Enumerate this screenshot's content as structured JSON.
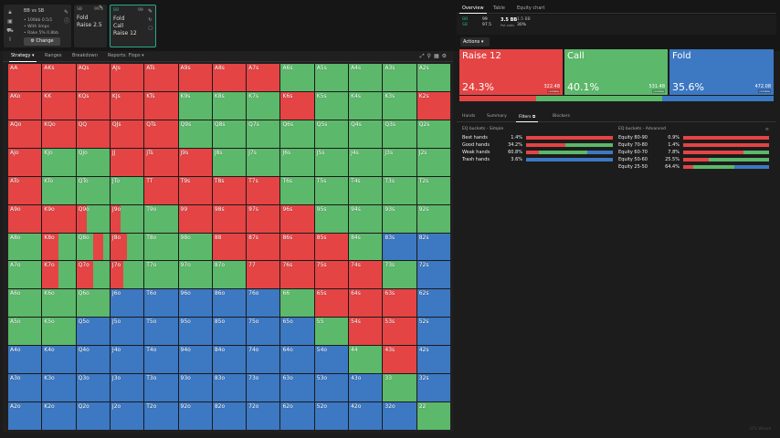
{
  "colors": {
    "raise": "#e44444",
    "call": "#5cb86a",
    "fold": "#3d78c2"
  },
  "gameinfo": {
    "title": "BB vs SB",
    "lines": [
      "• 100bb 0.5/1",
      "• With limps",
      "• Rake 5% 0.8bb"
    ],
    "change_label": "Change",
    "icons": [
      "lock-icon",
      "save-icon",
      "car-icon",
      "text-cursor-icon"
    ]
  },
  "cards": [
    {
      "pos": "SB",
      "stack": "99.5",
      "lines": [
        "Fold",
        "Raise 2.5"
      ],
      "selected": 1,
      "active": false
    },
    {
      "pos": "BB",
      "stack": "99",
      "lines": [
        "Fold",
        "Call",
        "Raise 12"
      ],
      "selected": -1,
      "active": true
    }
  ],
  "left_tabs": [
    {
      "label": "Strategy",
      "active": true,
      "chev": true
    },
    {
      "label": "Ranges",
      "active": false,
      "chev": false
    },
    {
      "label": "Breakdown",
      "active": false,
      "chev": false
    },
    {
      "label": "Reports: Flops",
      "active": false,
      "chev": true
    }
  ],
  "grid": [
    [
      [
        "AA",
        "r"
      ],
      [
        "AKs",
        "r"
      ],
      [
        "AQs",
        "r"
      ],
      [
        "AJs",
        "r"
      ],
      [
        "ATs",
        "r"
      ],
      [
        "A9s",
        "r"
      ],
      [
        "A8s",
        "r"
      ],
      [
        "A7s",
        "r"
      ],
      [
        "A6s",
        "c"
      ],
      [
        "A5s",
        "c"
      ],
      [
        "A4s",
        "c"
      ],
      [
        "A3s",
        "c"
      ],
      [
        "A2s",
        "c"
      ]
    ],
    [
      [
        "AKo",
        "r"
      ],
      [
        "KK",
        "r"
      ],
      [
        "KQs",
        "r"
      ],
      [
        "KJs",
        "r"
      ],
      [
        "KTs",
        "r"
      ],
      [
        "K9s",
        "c"
      ],
      [
        "K8s",
        "c"
      ],
      [
        "K7s",
        "c"
      ],
      [
        "K6s",
        "r"
      ],
      [
        "K5s",
        "c"
      ],
      [
        "K4s",
        "c"
      ],
      [
        "K3s",
        "c"
      ],
      [
        "K2s",
        "r"
      ]
    ],
    [
      [
        "AQo",
        "r"
      ],
      [
        "KQo",
        "r"
      ],
      [
        "QQ",
        "r"
      ],
      [
        "QJs",
        "r"
      ],
      [
        "QTs",
        "r"
      ],
      [
        "Q9s",
        "c"
      ],
      [
        "Q8s",
        "c"
      ],
      [
        "Q7s",
        "c"
      ],
      [
        "Q6s",
        "c"
      ],
      [
        "Q5s",
        "c"
      ],
      [
        "Q4s",
        "c"
      ],
      [
        "Q3s",
        "c"
      ],
      [
        "Q2s",
        "c"
      ]
    ],
    [
      [
        "AJo",
        "r"
      ],
      [
        "KJo",
        "c"
      ],
      [
        "QJo",
        "c"
      ],
      [
        "JJ",
        "r"
      ],
      [
        "JTs",
        "r"
      ],
      [
        "J9s",
        "r"
      ],
      [
        "J8s",
        "c"
      ],
      [
        "J7s",
        "c"
      ],
      [
        "J6s",
        "c"
      ],
      [
        "J5s",
        "c"
      ],
      [
        "J4s",
        "c"
      ],
      [
        "J3s",
        "c"
      ],
      [
        "J2s",
        "c"
      ]
    ],
    [
      [
        "ATo",
        "r"
      ],
      [
        "KTo",
        "c"
      ],
      [
        "QTo",
        "c"
      ],
      [
        "JTo",
        "c"
      ],
      [
        "TT",
        "r"
      ],
      [
        "T9s",
        "r"
      ],
      [
        "T8s",
        "r"
      ],
      [
        "T7s",
        "r"
      ],
      [
        "T6s",
        "c"
      ],
      [
        "T5s",
        "c"
      ],
      [
        "T4s",
        "c"
      ],
      [
        "T3s",
        "c"
      ],
      [
        "T2s",
        "c"
      ]
    ],
    [
      [
        "A9o",
        "r"
      ],
      [
        "K9o",
        "r"
      ],
      [
        "Q9o",
        [
          [
            "r",
            0.3
          ],
          [
            "c",
            0.7
          ]
        ]
      ],
      [
        "J9o",
        [
          [
            "r",
            0.3
          ],
          [
            "c",
            0.7
          ]
        ]
      ],
      [
        "T9o",
        "c"
      ],
      [
        "99",
        "r"
      ],
      [
        "98s",
        "r"
      ],
      [
        "97s",
        "r"
      ],
      [
        "96s",
        "r"
      ],
      [
        "95s",
        "c"
      ],
      [
        "94s",
        "c"
      ],
      [
        "93s",
        "c"
      ],
      [
        "92s",
        "c"
      ]
    ],
    [
      [
        "A8o",
        "c"
      ],
      [
        "K8o",
        [
          [
            "r",
            0.5
          ],
          [
            "c",
            0.5
          ]
        ]
      ],
      [
        "Q8o",
        [
          [
            "c",
            0.5
          ],
          [
            "r",
            0.3
          ],
          [
            "c",
            0.2
          ]
        ]
      ],
      [
        "J8o",
        [
          [
            "r",
            0.5
          ],
          [
            "c",
            0.5
          ]
        ]
      ],
      [
        "T8o",
        "c"
      ],
      [
        "98o",
        "c"
      ],
      [
        "88",
        "r"
      ],
      [
        "87s",
        "r"
      ],
      [
        "86s",
        "r"
      ],
      [
        "85s",
        "r"
      ],
      [
        "84s",
        "c"
      ],
      [
        "83s",
        "f"
      ],
      [
        "82s",
        "f"
      ]
    ],
    [
      [
        "A7o",
        "c"
      ],
      [
        "K7o",
        [
          [
            "r",
            0.5
          ],
          [
            "c",
            0.5
          ]
        ]
      ],
      [
        "Q7o",
        [
          [
            "r",
            0.5
          ],
          [
            "c",
            0.5
          ]
        ]
      ],
      [
        "J7o",
        [
          [
            "r",
            0.4
          ],
          [
            "c",
            0.6
          ]
        ]
      ],
      [
        "T7o",
        "c"
      ],
      [
        "97o",
        "c"
      ],
      [
        "87o",
        "c"
      ],
      [
        "77",
        "r"
      ],
      [
        "76s",
        "r"
      ],
      [
        "75s",
        "r"
      ],
      [
        "74s",
        "r"
      ],
      [
        "73s",
        "c"
      ],
      [
        "72s",
        "f"
      ]
    ],
    [
      [
        "A6o",
        "c"
      ],
      [
        "K6o",
        "c"
      ],
      [
        "Q6o",
        "c"
      ],
      [
        "J6o",
        "f"
      ],
      [
        "T6o",
        "f"
      ],
      [
        "96o",
        "f"
      ],
      [
        "86o",
        "f"
      ],
      [
        "76o",
        "f"
      ],
      [
        "66",
        "c"
      ],
      [
        "65s",
        "r"
      ],
      [
        "64s",
        "r"
      ],
      [
        "63s",
        "r"
      ],
      [
        "62s",
        "f"
      ]
    ],
    [
      [
        "A5o",
        "c"
      ],
      [
        "K5o",
        "c"
      ],
      [
        "Q5o",
        "f"
      ],
      [
        "J5o",
        "f"
      ],
      [
        "T5o",
        "f"
      ],
      [
        "95o",
        "f"
      ],
      [
        "85o",
        "f"
      ],
      [
        "75o",
        "f"
      ],
      [
        "65o",
        "f"
      ],
      [
        "55",
        "c"
      ],
      [
        "54s",
        "r"
      ],
      [
        "53s",
        "r"
      ],
      [
        "52s",
        "f"
      ]
    ],
    [
      [
        "A4o",
        "f"
      ],
      [
        "K4o",
        "f"
      ],
      [
        "Q4o",
        "f"
      ],
      [
        "J4o",
        "f"
      ],
      [
        "T4o",
        "f"
      ],
      [
        "94o",
        "f"
      ],
      [
        "84o",
        "f"
      ],
      [
        "74o",
        "f"
      ],
      [
        "64o",
        "f"
      ],
      [
        "54o",
        "f"
      ],
      [
        "44",
        "c"
      ],
      [
        "43s",
        "r"
      ],
      [
        "42s",
        "f"
      ]
    ],
    [
      [
        "A3o",
        "f"
      ],
      [
        "K3o",
        "f"
      ],
      [
        "Q3o",
        "f"
      ],
      [
        "J3o",
        "f"
      ],
      [
        "T3o",
        "f"
      ],
      [
        "93o",
        "f"
      ],
      [
        "83o",
        "f"
      ],
      [
        "73o",
        "f"
      ],
      [
        "63o",
        "f"
      ],
      [
        "53o",
        "f"
      ],
      [
        "43o",
        "f"
      ],
      [
        "33",
        "c"
      ],
      [
        "32s",
        "f"
      ]
    ],
    [
      [
        "A2o",
        "f"
      ],
      [
        "K2o",
        "f"
      ],
      [
        "Q2o",
        "f"
      ],
      [
        "J2o",
        "f"
      ],
      [
        "T2o",
        "f"
      ],
      [
        "92o",
        "f"
      ],
      [
        "82o",
        "f"
      ],
      [
        "72o",
        "f"
      ],
      [
        "62o",
        "f"
      ],
      [
        "52o",
        "f"
      ],
      [
        "42o",
        "f"
      ],
      [
        "32o",
        "f"
      ],
      [
        "22",
        "c"
      ]
    ]
  ],
  "right_tabs": [
    {
      "label": "Overview",
      "active": true
    },
    {
      "label": "Table",
      "active": false
    },
    {
      "label": "Equity chart",
      "active": false
    }
  ],
  "pot": {
    "cards": [
      "BB",
      "SB"
    ],
    "cards_vals": [
      "99",
      "97.5"
    ],
    "pot_label": "3.5 BB",
    "pot_sub": "Pot odds",
    "stack": "1.5 BB",
    "odds": "30%"
  },
  "actions_label": "Actions",
  "actions": [
    {
      "name": "Raise 12",
      "pct": "24.3%",
      "ev": "322.48",
      "ev_label": "combos",
      "color": "raise"
    },
    {
      "name": "Call",
      "pct": "40.1%",
      "ev": "531.48",
      "ev_label": "combos",
      "color": "call"
    },
    {
      "name": "Fold",
      "pct": "35.6%",
      "ev": "472.08",
      "ev_label": "combos",
      "color": "fold"
    }
  ],
  "freq": [
    [
      "raise",
      0.243
    ],
    [
      "call",
      0.401
    ],
    [
      "fold",
      0.356
    ]
  ],
  "hand_tabs": [
    {
      "label": "Hands",
      "active": false
    },
    {
      "label": "Summary",
      "active": false
    },
    {
      "label": "Filters",
      "active": true
    },
    {
      "label": "Blockers",
      "active": false
    }
  ],
  "buckets_simple": {
    "title": "EQ buckets - Simple",
    "rows": [
      {
        "label": "Best hands",
        "pct": "1.4%",
        "bar": [
          [
            "raise",
            1
          ]
        ]
      },
      {
        "label": "Good hands",
        "pct": "34.2%",
        "bar": [
          [
            "raise",
            0.45
          ],
          [
            "call",
            0.55
          ]
        ]
      },
      {
        "label": "Weak hands",
        "pct": "60.8%",
        "bar": [
          [
            "raise",
            0.15
          ],
          [
            "call",
            0.55
          ],
          [
            "fold",
            0.3
          ]
        ]
      },
      {
        "label": "Trash hands",
        "pct": "3.6%",
        "bar": [
          [
            "fold",
            1
          ]
        ]
      }
    ]
  },
  "buckets_adv": {
    "title": "EQ buckets - Advanced",
    "rows": [
      {
        "label": "Equity 80-90",
        "pct": "0.9%",
        "bar": [
          [
            "raise",
            1
          ]
        ]
      },
      {
        "label": "Equity 70-80",
        "pct": "1.4%",
        "bar": [
          [
            "raise",
            1
          ]
        ]
      },
      {
        "label": "Equity 60-70",
        "pct": "7.8%",
        "bar": [
          [
            "raise",
            0.7
          ],
          [
            "call",
            0.3
          ]
        ]
      },
      {
        "label": "Equity 50-60",
        "pct": "25.5%",
        "bar": [
          [
            "raise",
            0.3
          ],
          [
            "call",
            0.7
          ]
        ]
      },
      {
        "label": "Equity 25-50",
        "pct": "64.4%",
        "bar": [
          [
            "raise",
            0.12
          ],
          [
            "call",
            0.48
          ],
          [
            "fold",
            0.4
          ]
        ]
      }
    ]
  },
  "watermark": "GTO Wizard"
}
